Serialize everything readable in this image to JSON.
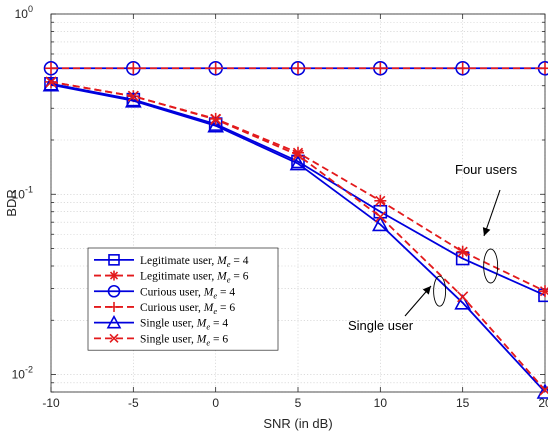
{
  "chart_data": {
    "type": "line",
    "xlabel": "SNR (in dB)",
    "ylabel": "BDR",
    "x": [
      -10,
      -5,
      0,
      5,
      10,
      15,
      20
    ],
    "x_ticks": [
      "-10",
      "-5",
      "0",
      "5",
      "10",
      "15",
      "20"
    ],
    "y_scale": "log",
    "ylim": [
      0.008,
      1
    ],
    "xlim": [
      -10,
      20
    ],
    "y_ticks": [
      {
        "value": 1,
        "base": "10",
        "exp": "0"
      },
      {
        "value": 0.1,
        "base": "10",
        "exp": "-1"
      },
      {
        "value": 0.01,
        "base": "10",
        "exp": "-2"
      }
    ],
    "grid": true,
    "legend_position": "lower-left",
    "series": [
      {
        "name": "Legitimate user, M_e = 4",
        "label_prefix": "Legitimate user, ",
        "label_var": "M",
        "label_sub": "e",
        "label_eq": " = 4",
        "color": "#0000dd",
        "dash": "solid",
        "marker": "square",
        "values": [
          0.41,
          0.335,
          0.245,
          0.152,
          0.08,
          0.044,
          0.0275
        ]
      },
      {
        "name": "Legitimate user, M_e = 6",
        "label_prefix": "Legitimate user, ",
        "label_var": "M",
        "label_sub": "e",
        "label_eq": " = 6",
        "color": "#e31a1c",
        "dash": "dashed",
        "marker": "asterisk",
        "values": [
          0.42,
          0.35,
          0.262,
          0.17,
          0.092,
          0.048,
          0.029
        ]
      },
      {
        "name": "Curious user, M_e = 4",
        "label_prefix": "Curious user, ",
        "label_var": "M",
        "label_sub": "e",
        "label_eq": " = 4",
        "color": "#0000dd",
        "dash": "solid",
        "marker": "circle",
        "values": [
          0.5,
          0.5,
          0.5,
          0.5,
          0.5,
          0.5,
          0.5
        ]
      },
      {
        "name": "Curious user, M_e = 6",
        "label_prefix": "Curious user, ",
        "label_var": "M",
        "label_sub": "e",
        "label_eq": " = 6",
        "color": "#e31a1c",
        "dash": "dashed",
        "marker": "plus",
        "values": [
          0.5,
          0.5,
          0.5,
          0.5,
          0.5,
          0.5,
          0.5
        ]
      },
      {
        "name": "Single user, M_e = 4",
        "label_prefix": "Single user, ",
        "label_var": "M",
        "label_sub": "e",
        "label_eq": " = 4",
        "color": "#0000dd",
        "dash": "solid",
        "marker": "triangle",
        "values": [
          0.405,
          0.33,
          0.24,
          0.148,
          0.068,
          0.025,
          0.008
        ]
      },
      {
        "name": "Single user, M_e = 6",
        "label_prefix": "Single user, ",
        "label_var": "M",
        "label_sub": "e",
        "label_eq": " = 6",
        "color": "#e31a1c",
        "dash": "dashed",
        "marker": "x",
        "values": [
          0.42,
          0.35,
          0.26,
          0.165,
          0.075,
          0.027,
          0.0082
        ]
      }
    ],
    "annotations": [
      {
        "text": "Four users",
        "points_to": {
          "x": 16.7,
          "y": 0.04
        }
      },
      {
        "text": "Single user",
        "points_to": {
          "x": 13.6,
          "y": 0.029
        }
      }
    ]
  }
}
